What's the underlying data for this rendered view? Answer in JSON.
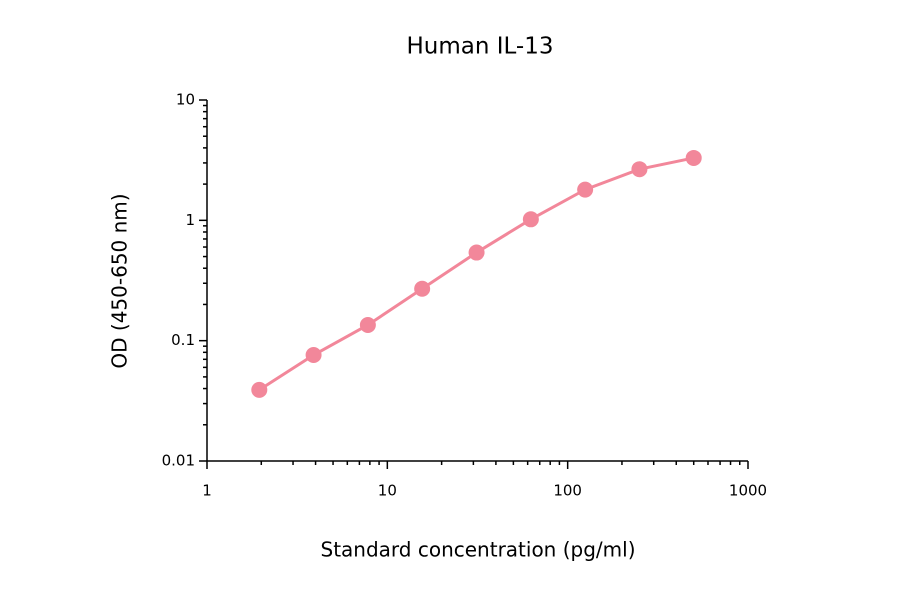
{
  "chart_data": {
    "type": "line",
    "title": "Human IL-13",
    "x_label": "Standard concentration (pg/ml)",
    "y_label": "OD (450-650 nm)",
    "x": [
      1.95,
      3.9,
      7.8,
      15.6,
      31.25,
      62.5,
      125,
      250,
      500
    ],
    "series": [
      {
        "name": "Human IL-13",
        "color": "#f2879a",
        "values": [
          0.039,
          0.076,
          0.135,
          0.27,
          0.54,
          1.02,
          1.8,
          2.66,
          3.3
        ]
      }
    ],
    "xlim": [
      1,
      1000
    ],
    "xticks": [
      1,
      10,
      100,
      1000
    ],
    "ylim": [
      0.01,
      10
    ],
    "yticks": [
      0.01,
      0.1,
      1,
      10
    ],
    "xscale": "log",
    "yscale": "log",
    "grid": false
  }
}
